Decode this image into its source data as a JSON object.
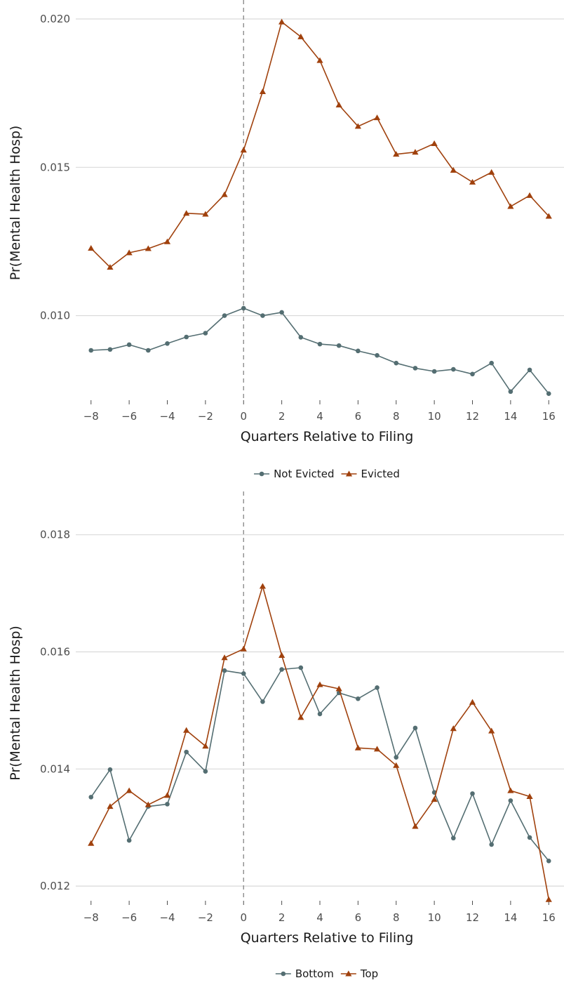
{
  "chart_data": [
    {
      "type": "line",
      "xlabel": "Quarters Relative to Filing",
      "ylabel": "Pr(Mental Health Hosp)",
      "x": [
        -8,
        -7,
        -6,
        -5,
        -4,
        -3,
        -2,
        -1,
        0,
        1,
        2,
        3,
        4,
        5,
        6,
        7,
        8,
        9,
        10,
        11,
        12,
        13,
        14,
        15,
        16
      ],
      "xticks": [
        "−8",
        "−6",
        "−4",
        "−2",
        "0",
        "2",
        "4",
        "6",
        "8",
        "10",
        "12",
        "14",
        "16"
      ],
      "xtick_values": [
        -8,
        -6,
        -4,
        -2,
        0,
        2,
        4,
        6,
        8,
        10,
        12,
        14,
        16
      ],
      "ylim": [
        0.00715,
        0.02045
      ],
      "yticks": [
        "0.010",
        "0.015",
        "0.020"
      ],
      "ytick_values": [
        0.01,
        0.015,
        0.02
      ],
      "vline_x": 0,
      "grid": "horizontal",
      "legend_position": "bottom",
      "series": [
        {
          "name": "Not Evicted",
          "color": "#546e72",
          "marker": "circle",
          "values": [
            0.00883,
            0.00886,
            0.00902,
            0.00883,
            0.00906,
            0.00928,
            0.00941,
            0.01,
            0.01025,
            0.01,
            0.01011,
            0.00927,
            0.00904,
            0.00899,
            0.00881,
            0.00866,
            0.0084,
            0.00823,
            0.00812,
            0.00819,
            0.00803,
            0.0084,
            0.00744,
            0.00817,
            0.00737
          ]
        },
        {
          "name": "Evicted",
          "color": "#a0410d",
          "marker": "triangle",
          "values": [
            0.01227,
            0.01163,
            0.01212,
            0.01226,
            0.01249,
            0.01345,
            0.01342,
            0.01408,
            0.01558,
            0.01755,
            0.0199,
            0.0194,
            0.0186,
            0.0171,
            0.01638,
            0.01667,
            0.01544,
            0.01551,
            0.0158,
            0.0149,
            0.0145,
            0.01483,
            0.01368,
            0.01405,
            0.01335
          ]
        }
      ]
    },
    {
      "type": "line",
      "xlabel": "Quarters Relative to Filing",
      "ylabel": "Pr(Mental Health Hosp)",
      "x": [
        -8,
        -7,
        -6,
        -5,
        -4,
        -3,
        -2,
        -1,
        0,
        1,
        2,
        3,
        4,
        5,
        6,
        7,
        8,
        9,
        10,
        11,
        12,
        13,
        14,
        15,
        16
      ],
      "xticks": [
        "−8",
        "−6",
        "−4",
        "−2",
        "0",
        "2",
        "4",
        "6",
        "8",
        "10",
        "12",
        "14",
        "16"
      ],
      "xtick_values": [
        -8,
        -6,
        -4,
        -2,
        0,
        2,
        4,
        6,
        8,
        10,
        12,
        14,
        16
      ],
      "ylim": [
        0.01175,
        0.0185
      ],
      "yticks": [
        "0.012",
        "0.014",
        "0.016",
        "0.018"
      ],
      "ytick_values": [
        0.012,
        0.014,
        0.016,
        0.018
      ],
      "vline_x": 0,
      "grid": "horizontal",
      "legend_position": "bottom",
      "series": [
        {
          "name": "Bottom",
          "color": "#546e72",
          "marker": "circle",
          "values": [
            0.01352,
            0.01399,
            0.01278,
            0.01336,
            0.0134,
            0.01429,
            0.01396,
            0.01568,
            0.01563,
            0.01515,
            0.0157,
            0.01573,
            0.01494,
            0.0153,
            0.0152,
            0.01539,
            0.0142,
            0.0147,
            0.0136,
            0.01282,
            0.01358,
            0.01271,
            0.01346,
            0.01283,
            0.01243
          ]
        },
        {
          "name": "Top",
          "color": "#a0410d",
          "marker": "triangle",
          "values": [
            0.01273,
            0.01336,
            0.01363,
            0.01339,
            0.01355,
            0.01466,
            0.01439,
            0.0159,
            0.01605,
            0.01712,
            0.01594,
            0.01488,
            0.01544,
            0.01537,
            0.01436,
            0.01434,
            0.01406,
            0.01302,
            0.01348,
            0.01469,
            0.01514,
            0.01465,
            0.01363,
            0.01353,
            0.01177
          ]
        }
      ]
    }
  ]
}
